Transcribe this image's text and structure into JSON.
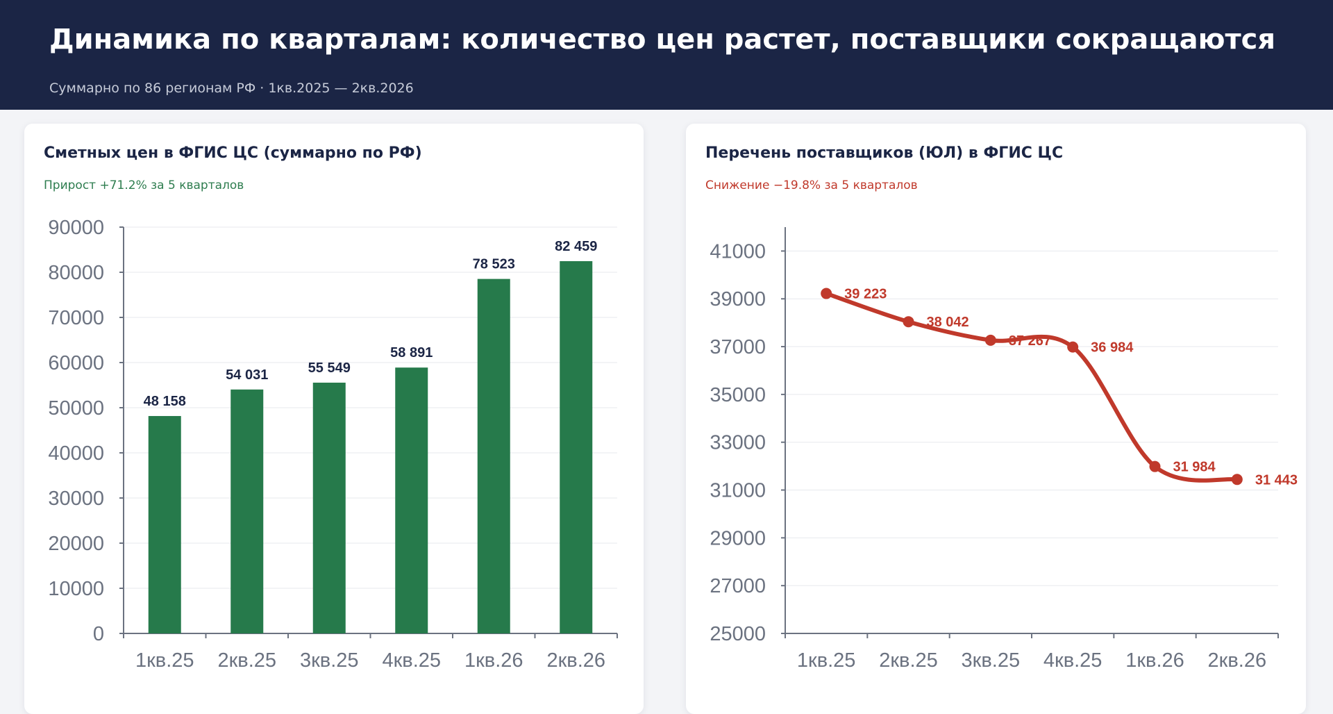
{
  "header": {
    "title": "Динамика по кварталам: количество цен растет, поставщики сокращаются",
    "subtitle": "Суммарно по 86 регионам РФ · 1кв.2025 — 2кв.2026"
  },
  "colors": {
    "header_bg": "#1b2545",
    "bar": "#267a4b",
    "line": "#c0392b",
    "growth": "#2e7d4f",
    "decline": "#c0392b"
  },
  "left_card": {
    "title": "Сметных цен в ФГИС ЦС (суммарно по РФ)",
    "subtitle": "Прирост +71.2% за 5 кварталов"
  },
  "right_card": {
    "title": "Перечень поставщиков (ЮЛ) в ФГИС ЦС",
    "subtitle": "Снижение −19.8% за 5 кварталов"
  },
  "chart_data": [
    {
      "type": "bar",
      "categories": [
        "1кв.25",
        "2кв.25",
        "3кв.25",
        "4кв.25",
        "1кв.26",
        "2кв.26"
      ],
      "values": [
        48158,
        54031,
        55549,
        58891,
        78523,
        82459
      ],
      "value_labels": [
        "48 158",
        "54 031",
        "55 549",
        "58 891",
        "78 523",
        "82 459"
      ],
      "yticks": [
        "0",
        "10000",
        "20000",
        "30000",
        "40000",
        "50000",
        "60000",
        "70000",
        "80000",
        "90000"
      ],
      "ylim": [
        0,
        90000
      ],
      "grid": true,
      "title": "Сметных цен в ФГИС ЦС (суммарно по РФ)"
    },
    {
      "type": "line",
      "categories": [
        "1кв.25",
        "2кв.25",
        "3кв.25",
        "4кв.25",
        "1кв.26",
        "2кв.26"
      ],
      "values": [
        39223,
        38042,
        37267,
        36984,
        31984,
        31443
      ],
      "value_labels": [
        "39 223",
        "38 042",
        "37 267",
        "36 984",
        "31 984",
        "31 443"
      ],
      "yticks": [
        "25000",
        "27000",
        "29000",
        "31000",
        "33000",
        "35000",
        "37000",
        "39000",
        "41000"
      ],
      "ylim": [
        25000,
        42000
      ],
      "grid": true,
      "smooth": true,
      "title": "Перечень поставщиков (ЮЛ) в ФГИС ЦС"
    }
  ]
}
